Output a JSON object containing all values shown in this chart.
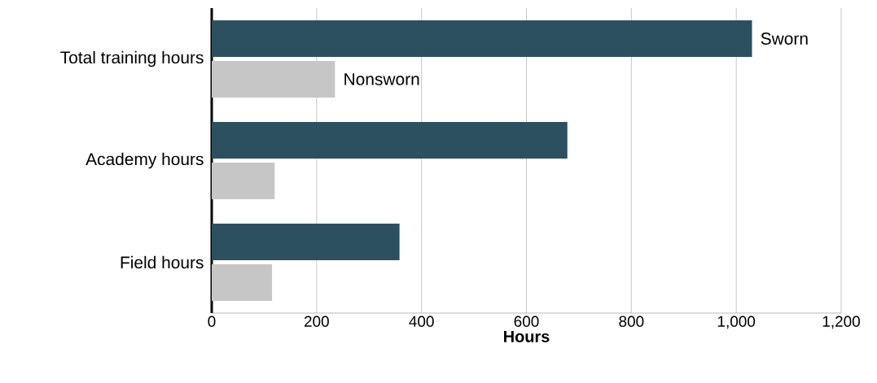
{
  "chart_data": {
    "type": "bar",
    "orientation": "horizontal",
    "categories": [
      "Total training hours",
      "Academy hours",
      "Field hours"
    ],
    "series": [
      {
        "name": "Sworn",
        "color": "#2d5060",
        "values": [
          1030,
          678,
          358
        ]
      },
      {
        "name": "Nonsworn",
        "color": "#c6c6c6",
        "values": [
          235,
          120,
          115
        ]
      }
    ],
    "xlabel": "Hours",
    "xlim": [
      0,
      1200
    ],
    "xticks": [
      0,
      200,
      400,
      600,
      800,
      {
        "value": 1000,
        "label": "1,000"
      },
      {
        "value": 1200,
        "label": "1,200"
      }
    ],
    "grid": "x"
  }
}
